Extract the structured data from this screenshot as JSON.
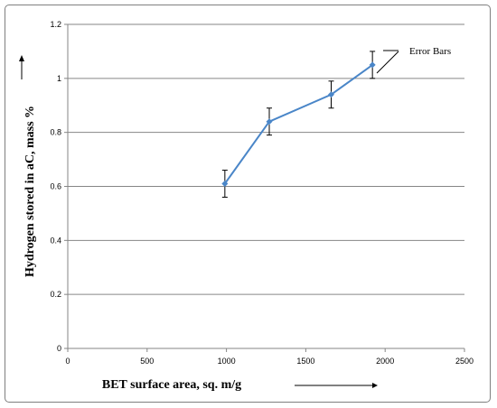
{
  "chart_data": {
    "type": "line",
    "xlabel": "BET surface area, sq. m/g",
    "ylabel": "Hydrogen stored in aC, mass %",
    "xlim": [
      0,
      2500
    ],
    "ylim": [
      0,
      1.2
    ],
    "xticks": [
      "0",
      "500",
      "1000",
      "1500",
      "2000",
      "2500"
    ],
    "yticks": [
      "0",
      "0.2",
      "0.4",
      "0.6",
      "0.8",
      "1",
      "1.2"
    ],
    "grid": "horizontal",
    "series": [
      {
        "x": [
          990,
          1270,
          1660,
          1920
        ],
        "y": [
          0.61,
          0.84,
          0.94,
          1.05
        ],
        "error": [
          0.05,
          0.05,
          0.05,
          0.05
        ],
        "color": "#4a86c8"
      }
    ],
    "annotation": "Error Bars"
  }
}
